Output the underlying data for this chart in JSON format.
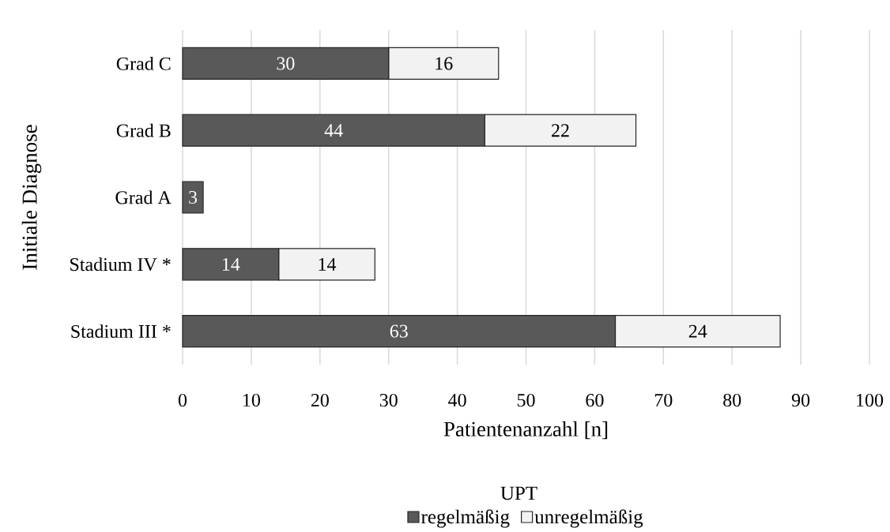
{
  "chart_data": {
    "type": "bar",
    "orientation": "horizontal",
    "stacked": true,
    "xlabel": "Patientenanzahl [n]",
    "ylabel": "Initiale Diagnose",
    "legend_title": "UPT",
    "categories": [
      "Grad C",
      "Grad B",
      "Grad A",
      "Stadium IV *",
      "Stadium III *"
    ],
    "series": [
      {
        "name": "regelmäßig",
        "color": "#595959",
        "values": [
          30,
          44,
          3,
          14,
          63
        ]
      },
      {
        "name": "unregelmäßig",
        "color": "#f2f2f2",
        "values": [
          16,
          22,
          null,
          14,
          24
        ]
      }
    ],
    "xlim": [
      0,
      100
    ],
    "xticks": [
      0,
      10,
      20,
      30,
      40,
      50,
      60,
      70,
      80,
      90,
      100
    ],
    "grid": "x",
    "legend": "bottom",
    "data_labels": true
  }
}
